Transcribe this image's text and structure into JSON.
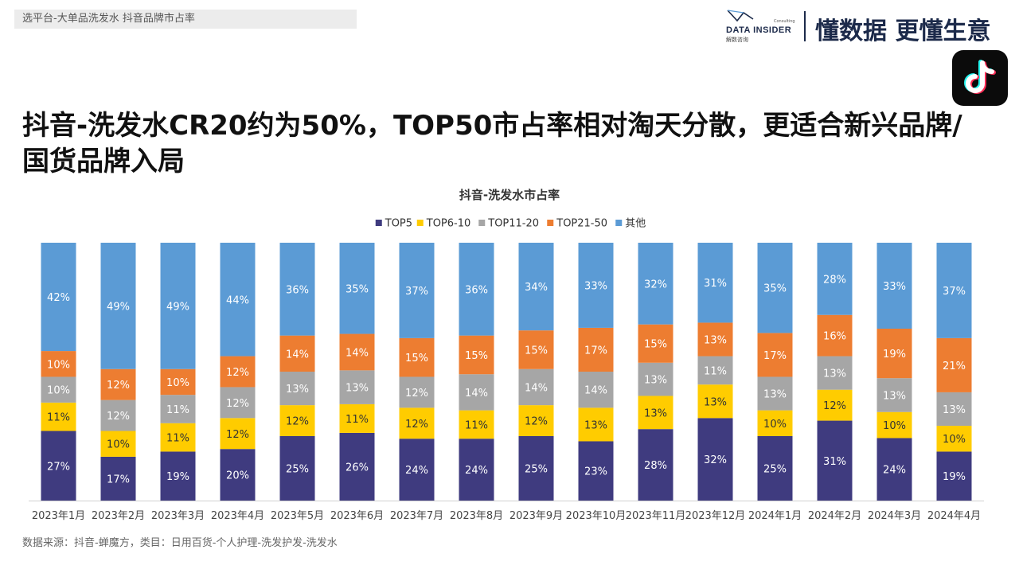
{
  "header": {
    "breadcrumb": "选平台-大单品洗发水 抖音品牌市占率",
    "logo_text": "DATA INSIDER",
    "logo_sub": "解数咨询",
    "logo_consult": "Consulting",
    "slogan": "懂数据 更懂生意"
  },
  "headline": "抖音-洗发水CR20约为50%，TOP50市占率相对淘天分散，更适合新兴品牌/国货品牌入局",
  "source": "数据来源：抖音-蝉魔方，类目：日用百货-个人护理-洗发护发-洗发水",
  "icons": {
    "tiktok": "tiktok-logo-icon"
  },
  "colors": {
    "TOP5": "#3f3b7f",
    "TOP6-10": "#ffcc00",
    "TOP11-20": "#a6a6a6",
    "TOP21-50": "#ed7d31",
    "其他": "#5b9bd5"
  },
  "chart_data": {
    "type": "bar",
    "stacked": true,
    "title": "抖音-洗发水市占率",
    "legend_position": "top",
    "categories": [
      "2023年1月",
      "2023年2月",
      "2023年3月",
      "2023年4月",
      "2023年5月",
      "2023年6月",
      "2023年7月",
      "2023年8月",
      "2023年9月",
      "2023年10月",
      "2023年11月",
      "2023年12月",
      "2024年1月",
      "2024年2月",
      "2024年3月",
      "2024年4月"
    ],
    "series": [
      {
        "name": "TOP5",
        "values": [
          27,
          17,
          19,
          20,
          25,
          26,
          24,
          24,
          25,
          23,
          28,
          32,
          25,
          31,
          24,
          19
        ]
      },
      {
        "name": "TOP6-10",
        "values": [
          11,
          10,
          11,
          12,
          12,
          11,
          12,
          11,
          12,
          13,
          13,
          13,
          10,
          12,
          10,
          10
        ]
      },
      {
        "name": "TOP11-20",
        "values": [
          10,
          12,
          11,
          12,
          13,
          13,
          12,
          14,
          14,
          14,
          13,
          11,
          13,
          13,
          13,
          13
        ]
      },
      {
        "name": "TOP21-50",
        "values": [
          10,
          12,
          10,
          12,
          14,
          14,
          15,
          15,
          15,
          17,
          15,
          13,
          17,
          16,
          19,
          21
        ]
      },
      {
        "name": "其他",
        "values": [
          42,
          49,
          49,
          44,
          36,
          35,
          37,
          36,
          34,
          33,
          32,
          31,
          35,
          28,
          33,
          37
        ]
      }
    ],
    "value_suffix": "%",
    "grid": false
  }
}
